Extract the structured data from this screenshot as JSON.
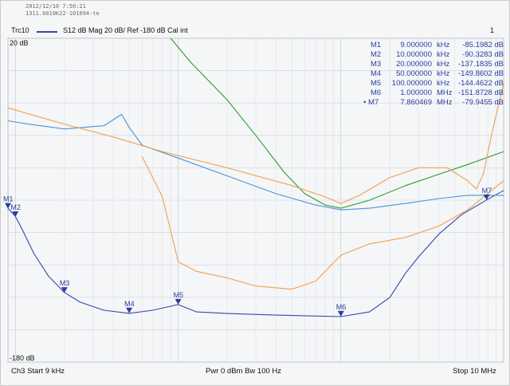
{
  "header": {
    "timestamp": "2012/12/10 7:50:21",
    "file_id": "1311.6010K22-101094-te",
    "trace_name": "Trc10",
    "trace_desc": "S12  dB Mag  20 dB/ Ref -180 dB  Cal int",
    "channel_num": "1"
  },
  "colors": {
    "blue_trace": "#3946a8",
    "light_blue": "#4a94d8",
    "green": "#2e9c2e",
    "orange": "#f0a050",
    "marker_text": "#2b3f9e"
  },
  "markers": [
    {
      "id": "M1",
      "freq": "9.000000",
      "unit": "kHz",
      "value": "-85.1982 dB",
      "active": false
    },
    {
      "id": "M2",
      "freq": "10.000000",
      "unit": "kHz",
      "value": "-90.3283 dB",
      "active": false
    },
    {
      "id": "M3",
      "freq": "20.000000",
      "unit": "kHz",
      "value": "-137.1835 dB",
      "active": false
    },
    {
      "id": "M4",
      "freq": "50.000000",
      "unit": "kHz",
      "value": "-149.8602 dB",
      "active": false
    },
    {
      "id": "M5",
      "freq": "100.000000",
      "unit": "kHz",
      "value": "-144.4622 dB",
      "active": false
    },
    {
      "id": "M6",
      "freq": "1.000000",
      "unit": "MHz",
      "value": "-151.8728 dB",
      "active": false
    },
    {
      "id": "M7",
      "freq": "7.860469",
      "unit": "MHz",
      "value": "-79.9455 dB",
      "active": true
    }
  ],
  "footer": {
    "left": "Ch3  Start  9 kHz",
    "center": "Pwr  0 dBm  Bw  100 Hz",
    "right": "Stop  10 MHz"
  },
  "chart_data": {
    "type": "line",
    "x_scale": "log",
    "xlim": [
      9000,
      10000000
    ],
    "ylim": [
      -180,
      20
    ],
    "y_ticks": [
      20,
      -180
    ],
    "ref_level": -180,
    "grid": true,
    "legend": "none",
    "series": [
      {
        "color": "blue_trace",
        "points": [
          [
            9000,
            -85
          ],
          [
            10000,
            -90
          ],
          [
            11000,
            -98
          ],
          [
            13000,
            -113
          ],
          [
            16000,
            -127
          ],
          [
            20000,
            -137
          ],
          [
            25000,
            -143
          ],
          [
            35000,
            -148
          ],
          [
            50000,
            -149.9
          ],
          [
            70000,
            -148
          ],
          [
            100000,
            -144.5
          ],
          [
            130000,
            -149
          ],
          [
            200000,
            -150
          ],
          [
            400000,
            -151
          ],
          [
            1000000,
            -151.9
          ],
          [
            1500000,
            -149
          ],
          [
            2000000,
            -140
          ],
          [
            2500000,
            -125
          ],
          [
            3000000,
            -115
          ],
          [
            4000000,
            -101
          ],
          [
            5500000,
            -89
          ],
          [
            7860469,
            -79.9
          ],
          [
            10000000,
            -74
          ]
        ]
      },
      {
        "color": "light_blue",
        "points": [
          [
            9000,
            -31
          ],
          [
            12000,
            -33
          ],
          [
            20000,
            -36
          ],
          [
            35000,
            -34
          ],
          [
            45000,
            -27
          ],
          [
            50000,
            -35
          ],
          [
            60000,
            -46
          ],
          [
            100000,
            -54
          ],
          [
            200000,
            -65
          ],
          [
            400000,
            -76
          ],
          [
            700000,
            -83
          ],
          [
            1000000,
            -86
          ],
          [
            1500000,
            -85
          ],
          [
            2500000,
            -82
          ],
          [
            4000000,
            -79
          ],
          [
            6000000,
            -77
          ],
          [
            10000000,
            -77
          ]
        ]
      },
      {
        "color": "green",
        "points": [
          [
            90000,
            20
          ],
          [
            120000,
            5
          ],
          [
            200000,
            -18
          ],
          [
            300000,
            -40
          ],
          [
            450000,
            -63
          ],
          [
            600000,
            -76
          ],
          [
            800000,
            -83
          ],
          [
            1000000,
            -85
          ],
          [
            1500000,
            -80
          ],
          [
            2500000,
            -71
          ],
          [
            4000000,
            -64
          ],
          [
            6000000,
            -58
          ],
          [
            10000000,
            -50
          ]
        ]
      },
      {
        "color": "orange",
        "points": [
          [
            9000,
            -23
          ],
          [
            20000,
            -33
          ],
          [
            40000,
            -41
          ],
          [
            80000,
            -50
          ],
          [
            200000,
            -60
          ],
          [
            500000,
            -71
          ],
          [
            800000,
            -78
          ],
          [
            1000000,
            -82
          ],
          [
            1300000,
            -77
          ],
          [
            2000000,
            -66
          ],
          [
            3000000,
            -60
          ],
          [
            4500000,
            -60
          ],
          [
            6000000,
            -68
          ],
          [
            6800000,
            -73
          ],
          [
            7500000,
            -64
          ],
          [
            8500000,
            -38
          ],
          [
            10000000,
            -8
          ]
        ]
      },
      {
        "color": "orange",
        "points": [
          [
            60000,
            -53
          ],
          [
            80000,
            -78
          ],
          [
            100000,
            -118
          ],
          [
            130000,
            -124
          ],
          [
            200000,
            -128
          ],
          [
            300000,
            -133
          ],
          [
            500000,
            -135
          ],
          [
            700000,
            -130
          ],
          [
            1000000,
            -114
          ],
          [
            1500000,
            -107
          ],
          [
            2500000,
            -103
          ],
          [
            4000000,
            -96
          ],
          [
            6000000,
            -86
          ],
          [
            10000000,
            -68
          ]
        ]
      }
    ]
  }
}
